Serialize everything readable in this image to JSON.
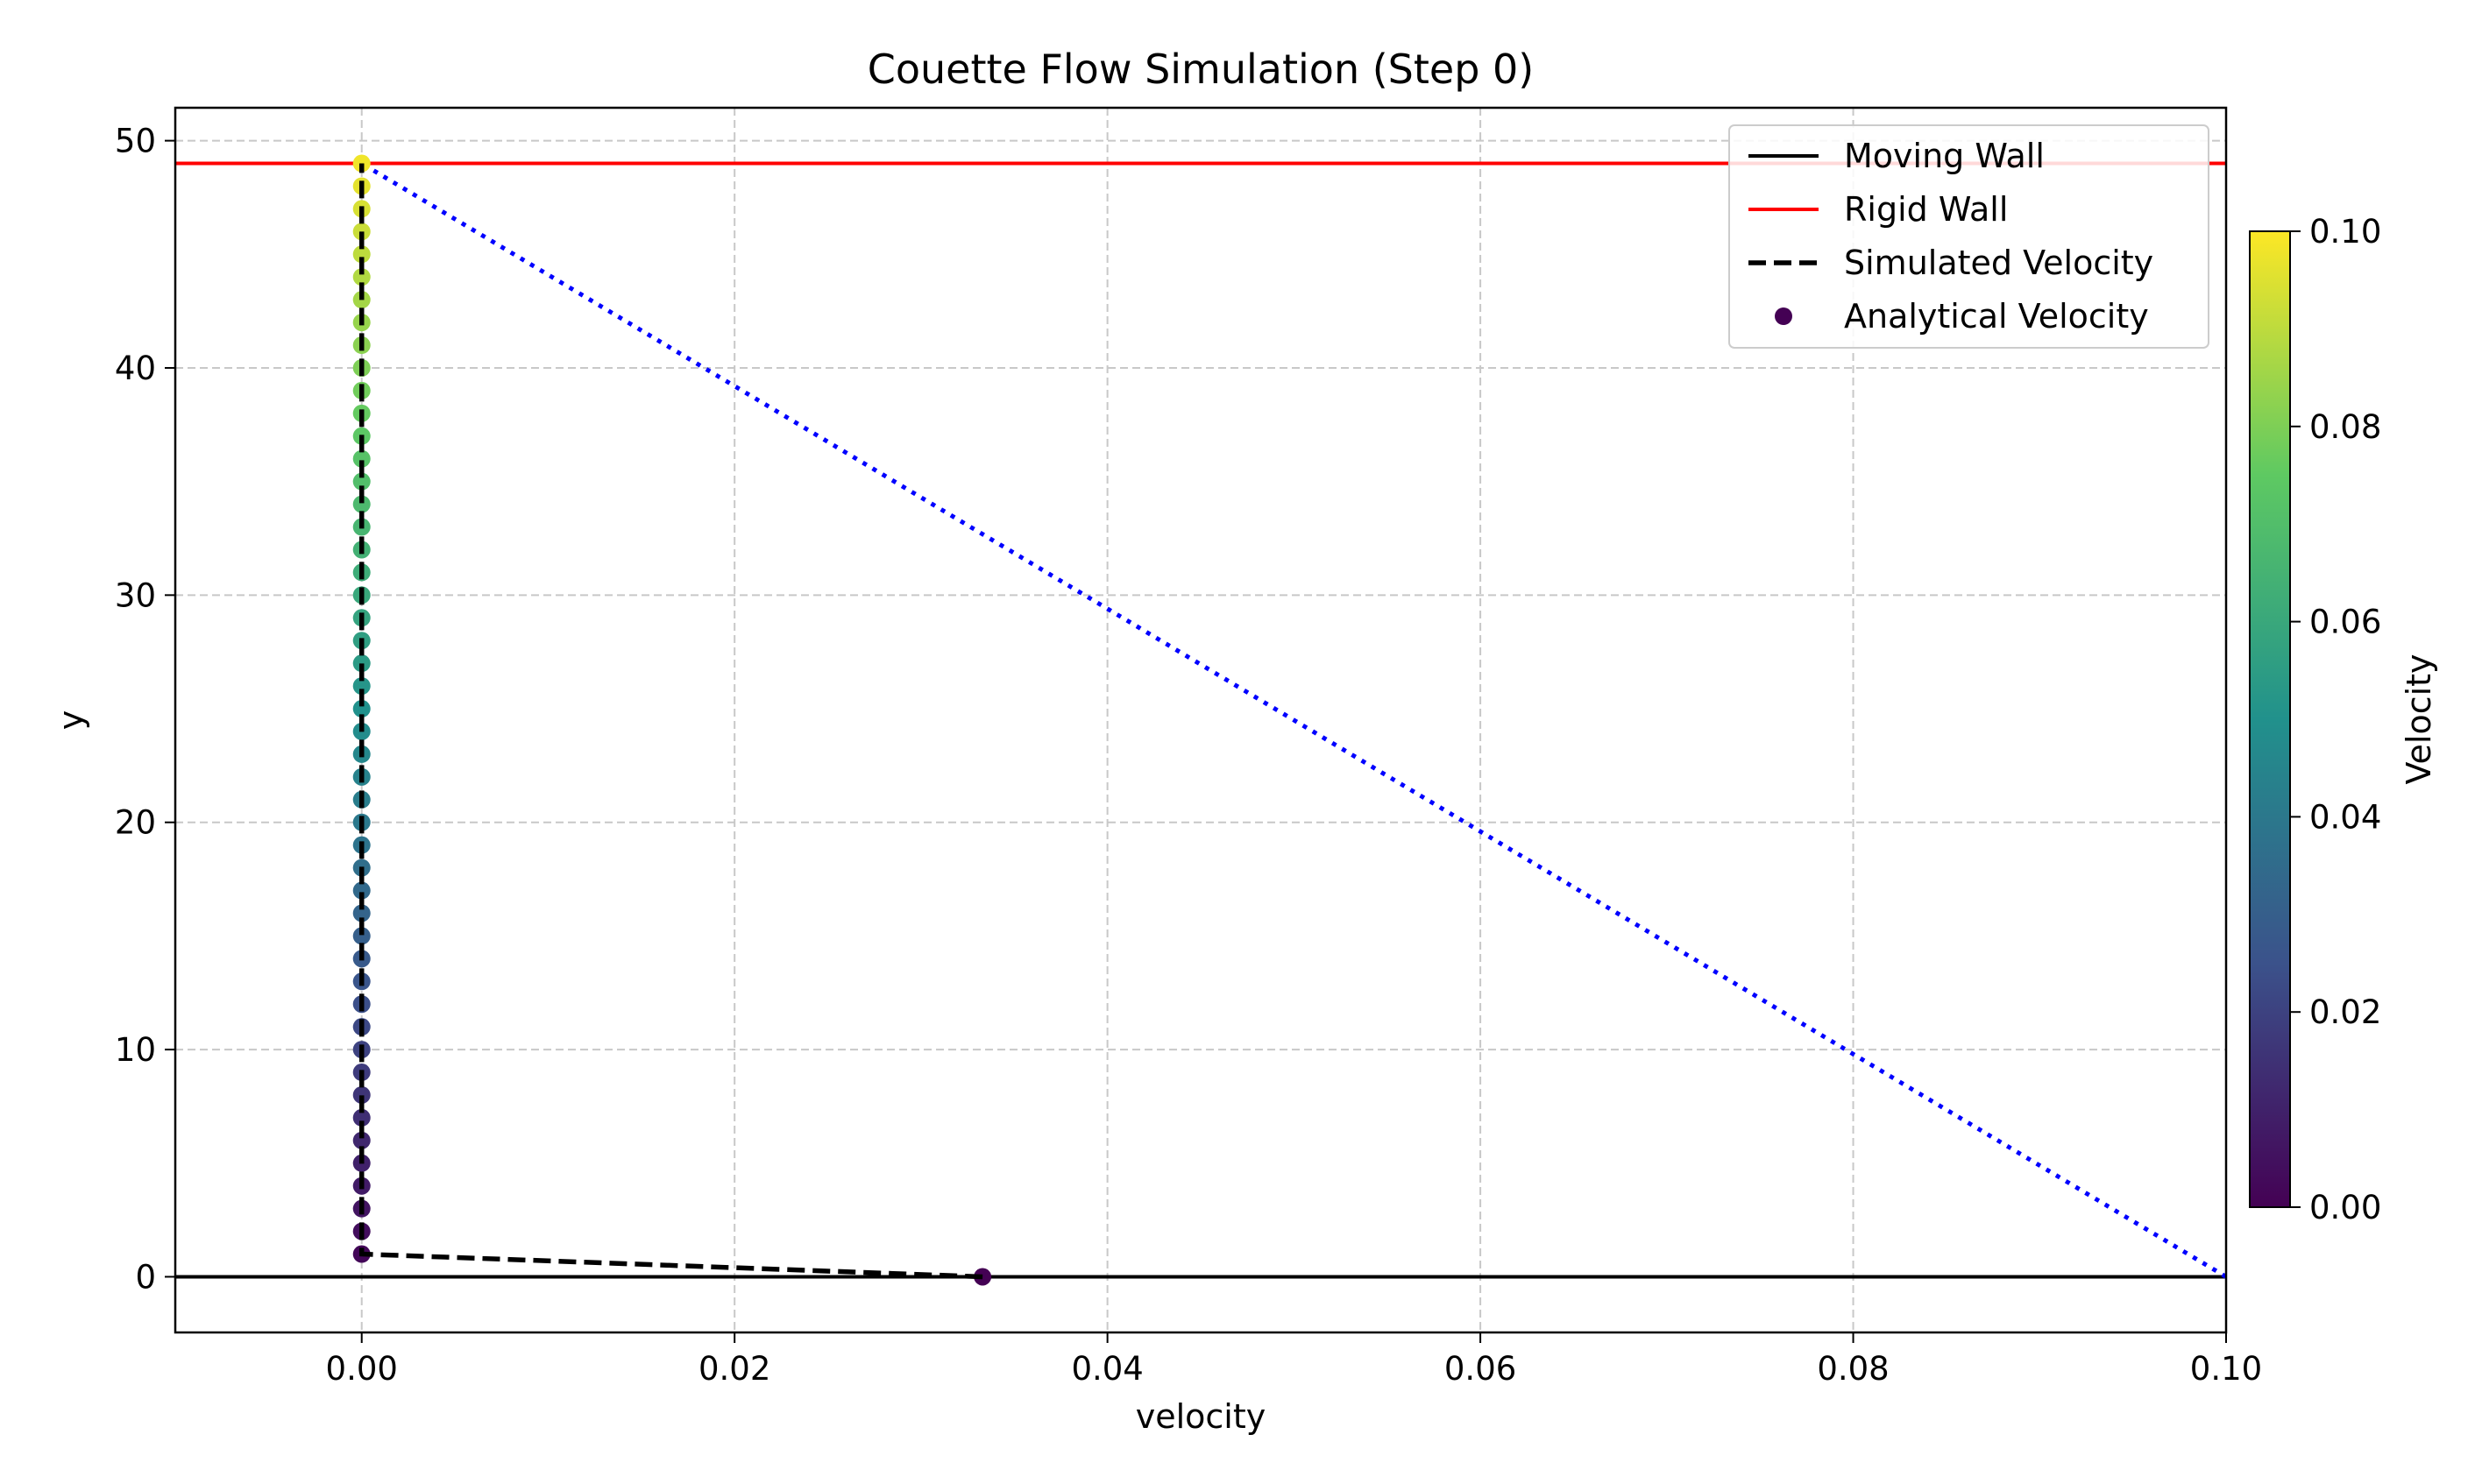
{
  "chart_data": {
    "type": "line",
    "title": "Couette Flow Simulation (Step 0)",
    "xlabel": "velocity",
    "ylabel": "y",
    "xlim": [
      -0.01,
      0.1
    ],
    "ylim": [
      -2.45,
      51.45
    ],
    "xticks": [
      0.0,
      0.02,
      0.04,
      0.06,
      0.08,
      0.1
    ],
    "xtick_labels": [
      "0.00",
      "0.02",
      "0.04",
      "0.06",
      "0.08",
      "0.10"
    ],
    "yticks": [
      0,
      10,
      20,
      30,
      40,
      50
    ],
    "ytick_labels": [
      "0",
      "10",
      "20",
      "30",
      "40",
      "50"
    ],
    "grid": true,
    "legend_position": "top-right",
    "legend": [
      {
        "label": "Moving Wall",
        "style": "solid",
        "color": "#000000"
      },
      {
        "label": "Rigid Wall",
        "style": "solid",
        "color": "#ff0000"
      },
      {
        "label": "Simulated Velocity",
        "style": "dashed",
        "color": "#000000"
      },
      {
        "label": "Analytical Velocity",
        "style": "marker",
        "color": "#440154"
      }
    ],
    "moving_wall": {
      "y": 0,
      "color": "#000000"
    },
    "rigid_wall": {
      "y": 49,
      "color": "#ff0000"
    },
    "simulated_velocity": {
      "color": "#000000",
      "points": [
        [
          0.0333,
          0
        ],
        [
          0.0,
          1
        ],
        [
          0.0,
          49
        ]
      ]
    },
    "linear_profile": {
      "color": "#0000ff",
      "style": "dotted",
      "points": [
        [
          0.1,
          0
        ],
        [
          0.0,
          49
        ]
      ]
    },
    "analytical_velocity": {
      "points": [
        [
          0.0333,
          0
        ],
        [
          0.0,
          1
        ],
        [
          0.0,
          2
        ],
        [
          0.0,
          3
        ],
        [
          0.0,
          4
        ],
        [
          0.0,
          5
        ],
        [
          0.0,
          6
        ],
        [
          0.0,
          7
        ],
        [
          0.0,
          8
        ],
        [
          0.0,
          9
        ],
        [
          0.0,
          10
        ],
        [
          0.0,
          11
        ],
        [
          0.0,
          12
        ],
        [
          0.0,
          13
        ],
        [
          0.0,
          14
        ],
        [
          0.0,
          15
        ],
        [
          0.0,
          16
        ],
        [
          0.0,
          17
        ],
        [
          0.0,
          18
        ],
        [
          0.0,
          19
        ],
        [
          0.0,
          20
        ],
        [
          0.0,
          21
        ],
        [
          0.0,
          22
        ],
        [
          0.0,
          23
        ],
        [
          0.0,
          24
        ],
        [
          0.0,
          25
        ],
        [
          0.0,
          26
        ],
        [
          0.0,
          27
        ],
        [
          0.0,
          28
        ],
        [
          0.0,
          29
        ],
        [
          0.0,
          30
        ],
        [
          0.0,
          31
        ],
        [
          0.0,
          32
        ],
        [
          0.0,
          33
        ],
        [
          0.0,
          34
        ],
        [
          0.0,
          35
        ],
        [
          0.0,
          36
        ],
        [
          0.0,
          37
        ],
        [
          0.0,
          38
        ],
        [
          0.0,
          39
        ],
        [
          0.0,
          40
        ],
        [
          0.0,
          41
        ],
        [
          0.0,
          42
        ],
        [
          0.0,
          43
        ],
        [
          0.0,
          44
        ],
        [
          0.0,
          45
        ],
        [
          0.0,
          46
        ],
        [
          0.0,
          47
        ],
        [
          0.0,
          48
        ],
        [
          0.0,
          49
        ]
      ],
      "color_values": [
        0.0,
        0.002,
        0.004,
        0.006,
        0.008,
        0.01,
        0.012,
        0.014,
        0.016,
        0.018,
        0.02,
        0.022,
        0.024,
        0.026,
        0.028,
        0.03,
        0.032,
        0.034,
        0.036,
        0.038,
        0.04,
        0.042,
        0.044,
        0.046,
        0.048,
        0.05,
        0.052,
        0.054,
        0.056,
        0.058,
        0.06,
        0.062,
        0.064,
        0.066,
        0.068,
        0.07,
        0.072,
        0.074,
        0.076,
        0.078,
        0.08,
        0.082,
        0.084,
        0.086,
        0.088,
        0.09,
        0.092,
        0.094,
        0.096,
        0.098
      ]
    },
    "colorbar": {
      "label": "Velocity",
      "range": [
        0.0,
        0.1
      ],
      "ticks": [
        0.0,
        0.02,
        0.04,
        0.06,
        0.08,
        0.1
      ],
      "tick_labels": [
        "0.00",
        "0.02",
        "0.04",
        "0.06",
        "0.08",
        "0.10"
      ],
      "colormap": "viridis",
      "colors": [
        "#440154",
        "#3b528b",
        "#21918c",
        "#5ec962",
        "#fde725"
      ]
    }
  }
}
